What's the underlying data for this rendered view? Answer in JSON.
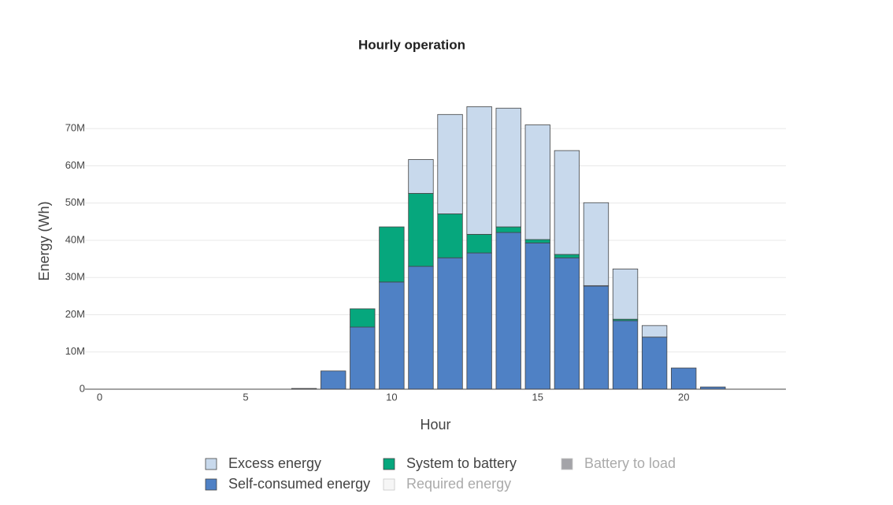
{
  "chart_data": {
    "type": "bar",
    "stacked": true,
    "title": "Hourly operation",
    "xlabel": "Hour",
    "ylabel": "Energy (Wh)",
    "x": [
      0,
      1,
      2,
      3,
      4,
      5,
      6,
      7,
      8,
      9,
      10,
      11,
      12,
      13,
      14,
      15,
      16,
      17,
      18,
      19,
      20,
      21,
      22,
      23
    ],
    "xlim": [
      -0.5,
      23.5
    ],
    "xticks": [
      0,
      5,
      10,
      15,
      20
    ],
    "ylim": [
      0,
      80000000
    ],
    "yticks": [
      0,
      {
        "value": 10000000,
        "label": "10M"
      },
      {
        "value": 20000000,
        "label": "20M"
      },
      {
        "value": 30000000,
        "label": "30M"
      },
      {
        "value": 40000000,
        "label": "40M"
      },
      {
        "value": 50000000,
        "label": "50M"
      },
      {
        "value": 60000000,
        "label": "60M"
      },
      {
        "value": 70000000,
        "label": "70M"
      }
    ],
    "grid": true,
    "series": [
      {
        "name": "Excess energy",
        "color": "#c8d9ec",
        "visible": true,
        "values": [
          0,
          0,
          0,
          0,
          0,
          0,
          0,
          0,
          0,
          0,
          0,
          9100000,
          26700000,
          34300000,
          31900000,
          30800000,
          27900000,
          22300000,
          13500000,
          3100000,
          0,
          0,
          0,
          0
        ]
      },
      {
        "name": "Self-consumed energy",
        "color": "#4f81c5",
        "visible": true,
        "values": [
          0,
          0,
          0,
          0,
          0,
          0,
          0,
          200000,
          4900000,
          16700000,
          28800000,
          33000000,
          35300000,
          36600000,
          42100000,
          39300000,
          35300000,
          27700000,
          18400000,
          14000000,
          5700000,
          600000,
          0,
          0
        ]
      },
      {
        "name": "System to battery",
        "color": "#06a77d",
        "visible": true,
        "values": [
          0,
          0,
          0,
          0,
          0,
          0,
          0,
          0,
          0,
          4900000,
          14800000,
          19600000,
          11800000,
          5000000,
          1500000,
          900000,
          900000,
          100000,
          400000,
          0,
          0,
          0,
          0,
          0
        ]
      },
      {
        "name": "Required energy",
        "color": "#f4f4f4",
        "visible": false
      },
      {
        "name": "Battery to load",
        "color": "#8e8e93",
        "visible": false
      }
    ]
  }
}
